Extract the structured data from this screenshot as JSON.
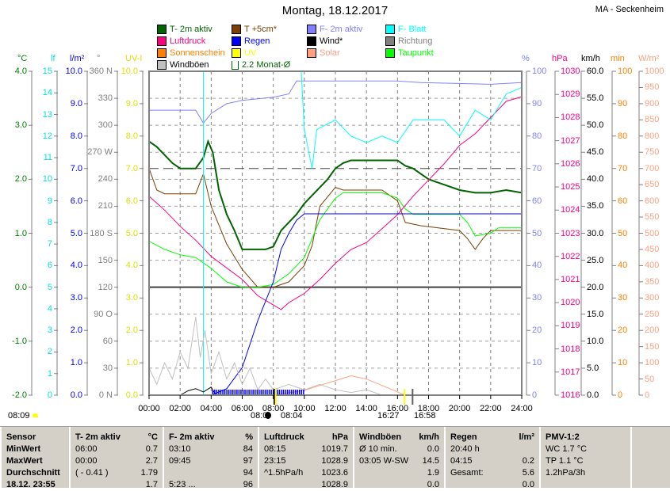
{
  "title": "Montag, 18.12.2017",
  "station": "MA - Seckenheim",
  "legend": [
    {
      "label": "T- 2m aktiv",
      "color": "#006400"
    },
    {
      "label": "T +5cm*",
      "color": "#7b3f00"
    },
    {
      "label": "F- 2m aktiv",
      "color": "#8080ff"
    },
    {
      "label": "F- Blatt",
      "color": "#00ffff"
    },
    {
      "label": "Luftdruck",
      "color": "#ff0080"
    },
    {
      "label": "Regen",
      "color": "#0000ff"
    },
    {
      "label": "Wind*",
      "color": "#000000"
    },
    {
      "label": "Richtung",
      "color": "#808080"
    },
    {
      "label": "Sonnenschein",
      "color": "#ff8000"
    },
    {
      "label": "UV",
      "color": "#ffff00"
    },
    {
      "label": "Solar",
      "color": "#ffa080"
    },
    {
      "label": "Taupunkt",
      "color": "#00ff00"
    },
    {
      "label": "Windböen",
      "color": "#c0c0c0"
    },
    {
      "label": "2.2 Monat-Ø",
      "color": "#006400"
    }
  ],
  "axes_left": [
    {
      "unit": "°C",
      "color": "#008000",
      "ticks": [
        "4.0",
        "3.0",
        "2.0",
        "1.0",
        "0.0",
        "-1.0",
        "-2.0"
      ]
    },
    {
      "unit": "lf",
      "color": "#00e0e0",
      "ticks": [
        "15",
        "14",
        "13",
        "12",
        "11",
        "10",
        "9",
        "8",
        "7",
        "6",
        "5",
        "4",
        "3",
        "2",
        "1",
        "0"
      ]
    },
    {
      "unit": "l/m²",
      "color": "#0000ff",
      "ticks": [
        "10.0",
        "9.0",
        "8.0",
        "7.0",
        "6.0",
        "5.0",
        "4.0",
        "3.0",
        "2.0",
        "1.0",
        "0.0"
      ]
    },
    {
      "unit": "°",
      "color": "#808080",
      "ticks": [
        "360 N",
        "330",
        "300",
        "270 W",
        "240",
        "210",
        "180 S",
        "150",
        "120",
        "90 O",
        "60",
        "30",
        "0 N"
      ]
    },
    {
      "unit": "UV-I",
      "color": "#e0e000",
      "ticks": [
        "10.0",
        "9.0",
        "8.0",
        "7.0",
        "6.0",
        "5.0",
        "4.0",
        "3.0",
        "2.0",
        "1.0",
        "0.0"
      ]
    }
  ],
  "axes_right": [
    {
      "unit": "%",
      "color": "#8080ff",
      "ticks": [
        "100",
        "90",
        "80",
        "70",
        "60",
        "50",
        "40",
        "30",
        "20",
        "10",
        "0"
      ]
    },
    {
      "unit": "hPa",
      "color": "#ff0080",
      "ticks": [
        "1030",
        "1029",
        "1028",
        "1027",
        "1026",
        "1025",
        "1024",
        "1023",
        "1022",
        "1021",
        "1020",
        "1019",
        "1018",
        "1017",
        "1016"
      ]
    },
    {
      "unit": "km/h",
      "color": "#000000",
      "ticks": [
        "60.0",
        "55.0",
        "50.0",
        "45.0",
        "40.0",
        "35.0",
        "30.0",
        "25.0",
        "20.0",
        "15.0",
        "10.0",
        "5.0",
        "0.0"
      ]
    },
    {
      "unit": "min",
      "color": "#ff8000",
      "ticks": [
        "100",
        "90",
        "80",
        "70",
        "60",
        "50",
        "40",
        "30",
        "20",
        "10",
        "0"
      ]
    },
    {
      "unit": "W/m²",
      "color": "#ffa080",
      "ticks": [
        "1000",
        "950",
        "900",
        "850",
        "800",
        "750",
        "700",
        "650",
        "600",
        "550",
        "500",
        "450",
        "400",
        "350",
        "300",
        "250",
        "200",
        "150",
        "100",
        "50",
        "0"
      ]
    }
  ],
  "time_ticks": [
    "00:00",
    "02:00",
    "04:00",
    "06:00",
    "08:00",
    "10:00",
    "12:00",
    "14:00",
    "16:00",
    "18:00",
    "20:00",
    "22:00",
    "24:00"
  ],
  "sun": {
    "left": "08:09",
    "rise_a": "08:0",
    "rise_b": "08:04",
    "set_a": "16:27",
    "set_b": "16:58"
  },
  "chart_data": {
    "type": "line",
    "title": "Montag, 18.12.2017",
    "xlim": [
      0,
      24
    ],
    "monthly_avg_temp": 2.2,
    "grid": true,
    "series": [
      {
        "name": "T- 2m aktiv",
        "axis": "°C",
        "ylim": [
          -2,
          4
        ],
        "color": "#006400",
        "width": 2,
        "points": [
          [
            0,
            2.7
          ],
          [
            0.5,
            2.6
          ],
          [
            1,
            2.45
          ],
          [
            1.5,
            2.3
          ],
          [
            2,
            2.2
          ],
          [
            3,
            2.2
          ],
          [
            3.5,
            2.4
          ],
          [
            3.8,
            2.7
          ],
          [
            4.1,
            2.5
          ],
          [
            4.5,
            1.8
          ],
          [
            5,
            1.35
          ],
          [
            5.5,
            1.05
          ],
          [
            6,
            0.7
          ],
          [
            7.5,
            0.7
          ],
          [
            8,
            0.75
          ],
          [
            8.5,
            1.05
          ],
          [
            9.5,
            1.35
          ],
          [
            10,
            1.55
          ],
          [
            10.5,
            1.7
          ],
          [
            11.5,
            2.0
          ],
          [
            12,
            2.2
          ],
          [
            12.5,
            2.3
          ],
          [
            13,
            2.35
          ],
          [
            16,
            2.35
          ],
          [
            16.5,
            2.25
          ],
          [
            17,
            2.2
          ],
          [
            18,
            2.0
          ],
          [
            19,
            1.9
          ],
          [
            20,
            1.8
          ],
          [
            21,
            1.75
          ],
          [
            22,
            1.75
          ],
          [
            23,
            1.8
          ],
          [
            24,
            1.75
          ]
        ]
      },
      {
        "name": "T +5cm*",
        "axis": "°C",
        "ylim": [
          -2,
          4
        ],
        "color": "#7b3f00",
        "width": 1,
        "points": [
          [
            0,
            2.2
          ],
          [
            0.5,
            1.8
          ],
          [
            1,
            1.73
          ],
          [
            3,
            1.73
          ],
          [
            3.5,
            2.1
          ],
          [
            4,
            1.5
          ],
          [
            5,
            0.8
          ],
          [
            6,
            0.33
          ],
          [
            7,
            0.0
          ],
          [
            8,
            0.0
          ],
          [
            9,
            0.1
          ],
          [
            10,
            0.4
          ],
          [
            10.5,
            0.77
          ],
          [
            11,
            1.5
          ],
          [
            12,
            1.85
          ],
          [
            12.5,
            1.8
          ],
          [
            15,
            1.8
          ],
          [
            16,
            1.6
          ],
          [
            16.5,
            1.2
          ],
          [
            17.5,
            1.14
          ],
          [
            20,
            1.05
          ],
          [
            20.5,
            0.9
          ],
          [
            21,
            0.7
          ],
          [
            21.5,
            0.9
          ],
          [
            22,
            1.05
          ],
          [
            24,
            1.05
          ]
        ]
      },
      {
        "name": "Taupunkt",
        "axis": "°C",
        "ylim": [
          -2,
          4
        ],
        "color": "#00ff00",
        "width": 1,
        "points": [
          [
            0,
            0.85
          ],
          [
            1,
            0.7
          ],
          [
            2,
            0.6
          ],
          [
            3,
            0.55
          ],
          [
            4,
            0.35
          ],
          [
            5,
            0.1
          ],
          [
            6,
            0.0
          ],
          [
            7,
            0.0
          ],
          [
            8,
            0.05
          ],
          [
            9,
            0.25
          ],
          [
            10,
            0.55
          ],
          [
            10.5,
            0.9
          ],
          [
            11,
            1.25
          ],
          [
            11.5,
            1.45
          ],
          [
            12,
            1.65
          ],
          [
            12.5,
            1.75
          ],
          [
            15,
            1.75
          ],
          [
            16,
            1.65
          ],
          [
            16.5,
            1.45
          ],
          [
            17,
            1.35
          ],
          [
            20,
            1.35
          ],
          [
            20.5,
            1.2
          ],
          [
            21,
            0.95
          ],
          [
            22,
            1.0
          ],
          [
            22.5,
            1.1
          ],
          [
            24,
            1.1
          ]
        ]
      },
      {
        "name": "Luftdruck",
        "axis": "hPa",
        "ylim": [
          1016,
          1030
        ],
        "color": "#ff0080",
        "width": 1,
        "points": [
          [
            0,
            1024.6
          ],
          [
            1,
            1024.0
          ],
          [
            2,
            1023.3
          ],
          [
            3,
            1022.7
          ],
          [
            4,
            1022.0
          ],
          [
            5,
            1021.5
          ],
          [
            6,
            1021.0
          ],
          [
            7,
            1020.3
          ],
          [
            8,
            1019.9
          ],
          [
            8.5,
            1019.7
          ],
          [
            9,
            1020.0
          ],
          [
            10,
            1020.4
          ],
          [
            11,
            1021.0
          ],
          [
            12,
            1021.7
          ],
          [
            13,
            1022.3
          ],
          [
            14,
            1022.6
          ],
          [
            15,
            1023.2
          ],
          [
            16,
            1023.8
          ],
          [
            17,
            1024.6
          ],
          [
            18,
            1025.3
          ],
          [
            19,
            1026.0
          ],
          [
            20,
            1026.8
          ],
          [
            21,
            1027.3
          ],
          [
            22,
            1028.0
          ],
          [
            23,
            1028.7
          ],
          [
            24,
            1028.9
          ]
        ]
      },
      {
        "name": "F- 2m aktiv",
        "axis": "%",
        "ylim": [
          0,
          100
        ],
        "color": "#8080ff",
        "width": 1,
        "points": [
          [
            0,
            88
          ],
          [
            3,
            88
          ],
          [
            3.5,
            84
          ],
          [
            4,
            87
          ],
          [
            5,
            90
          ],
          [
            6,
            91
          ],
          [
            8,
            92
          ],
          [
            9,
            93
          ],
          [
            9.5,
            97
          ],
          [
            16,
            97
          ],
          [
            17.5,
            96.5
          ],
          [
            22,
            96
          ],
          [
            24,
            96.5
          ]
        ]
      },
      {
        "name": "F- Blatt",
        "axis": "%",
        "ylim": [
          0,
          100
        ],
        "color": "#00ffff",
        "width": 1,
        "points": [
          [
            3.5,
            0
          ],
          [
            3.5,
            100
          ],
          [
            9.8,
            100
          ],
          [
            10,
            82
          ],
          [
            10.5,
            70
          ],
          [
            10.8,
            82
          ],
          [
            12,
            85
          ],
          [
            13,
            80
          ],
          [
            14,
            78
          ],
          [
            15,
            80
          ],
          [
            16,
            78
          ],
          [
            17,
            85
          ],
          [
            19,
            85
          ],
          [
            20,
            80
          ],
          [
            21,
            88
          ],
          [
            22,
            85
          ],
          [
            23,
            93
          ],
          [
            24,
            95
          ]
        ]
      },
      {
        "name": "Regen",
        "axis": "l/m²",
        "ylim": [
          0,
          10
        ],
        "color": "#0000ff",
        "width": 1,
        "points": [
          [
            0,
            0
          ],
          [
            4,
            0
          ],
          [
            5,
            0.2
          ],
          [
            6,
            0.85
          ],
          [
            7,
            2.3
          ],
          [
            8,
            3.5
          ],
          [
            8.5,
            4.5
          ],
          [
            9,
            5.0
          ],
          [
            9.5,
            5.4
          ],
          [
            10,
            5.6
          ],
          [
            24,
            5.6
          ]
        ]
      },
      {
        "name": "Windböen",
        "axis": "km/h",
        "ylim": [
          0,
          60
        ],
        "color": "#c0c0c0",
        "width": 1,
        "points": [
          [
            0,
            5
          ],
          [
            0.5,
            2
          ],
          [
            1,
            6
          ],
          [
            1.5,
            3
          ],
          [
            2,
            8
          ],
          [
            2.5,
            5
          ],
          [
            3,
            14.5
          ],
          [
            3.3,
            7
          ],
          [
            3.6,
            12
          ],
          [
            4,
            4
          ],
          [
            4.5,
            8
          ],
          [
            5,
            3
          ],
          [
            5.5,
            6
          ],
          [
            6,
            2
          ],
          [
            6.5,
            5
          ],
          [
            7,
            1
          ],
          [
            7.5,
            3
          ],
          [
            8,
            1
          ],
          [
            9,
            2
          ],
          [
            10,
            1
          ],
          [
            11,
            2
          ],
          [
            12,
            1
          ],
          [
            13,
            0.5
          ],
          [
            14,
            1
          ],
          [
            15,
            0
          ],
          [
            24,
            0
          ]
        ]
      },
      {
        "name": "Wind*",
        "axis": "km/h",
        "ylim": [
          0,
          60
        ],
        "color": "#000000",
        "width": 1,
        "points": [
          [
            2,
            0
          ],
          [
            2.5,
            0.8
          ],
          [
            3,
            1.2
          ],
          [
            3.5,
            0.6
          ],
          [
            4,
            1.5
          ],
          [
            4.3,
            0
          ]
        ]
      },
      {
        "name": "Solar",
        "axis": "W/m²",
        "ylim": [
          0,
          1000
        ],
        "color": "#ffa080",
        "width": 1,
        "points": [
          [
            8,
            0
          ],
          [
            10,
            15
          ],
          [
            11,
            30
          ],
          [
            12,
            45
          ],
          [
            13,
            60
          ],
          [
            14,
            50
          ],
          [
            15,
            30
          ],
          [
            16,
            10
          ],
          [
            16.5,
            0
          ]
        ]
      }
    ]
  },
  "table": {
    "columns": [
      {
        "h": [
          "Sensor",
          ""
        ],
        "rows": [
          [
            "MinWert",
            ""
          ],
          [
            "MaxWert",
            ""
          ],
          [
            "Durchschnitt",
            ""
          ],
          [
            "18.12. 23:55",
            ""
          ]
        ],
        "bold": true
      },
      {
        "h": [
          "T- 2m aktiv",
          "°C"
        ],
        "rows": [
          [
            "06:00",
            "0.7"
          ],
          [
            "00:00",
            "2.7"
          ],
          [
            "( - 0.41 )",
            "1.79"
          ],
          [
            "",
            "1.7"
          ]
        ]
      },
      {
        "h": [
          "F- 2m aktiv",
          "%"
        ],
        "rows": [
          [
            "03:10",
            "84"
          ],
          [
            "09:45",
            "97"
          ],
          [
            "",
            "94"
          ],
          [
            "5:23 ...",
            "96"
          ]
        ]
      },
      {
        "h": [
          "Luftdruck",
          "hPa"
        ],
        "rows": [
          [
            "08:15",
            "1019.7"
          ],
          [
            "23:15",
            "1028.9"
          ],
          [
            "^1.5hPa/h",
            "1023.6"
          ],
          [
            "",
            "1028.9"
          ]
        ]
      },
      {
        "h": [
          "Windböen",
          "km/h"
        ],
        "rows": [
          [
            "Ø 10 min.",
            "0.0"
          ],
          [
            "03:05  W-SW",
            "14.5"
          ],
          [
            "",
            "1.9"
          ],
          [
            "",
            "0.0"
          ]
        ]
      },
      {
        "h": [
          "Regen",
          "l/m²"
        ],
        "rows": [
          [
            "20:40 h",
            ""
          ],
          [
            "04:15",
            "0.2"
          ],
          [
            "Gesamt:",
            "5.6"
          ],
          [
            "",
            "0.0"
          ]
        ]
      },
      {
        "h": [
          "PMV-1:2",
          ""
        ],
        "rows": [
          [
            "WC 1.7 °C",
            ""
          ],
          [
            "TP 1.1 °C",
            ""
          ],
          [
            "1.2hPa/3h",
            ""
          ],
          [
            "",
            ""
          ]
        ]
      }
    ]
  }
}
